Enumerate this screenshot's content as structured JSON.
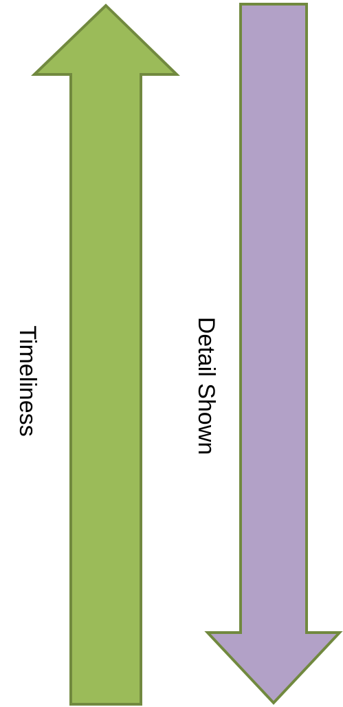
{
  "diagram": {
    "arrows": [
      {
        "id": "timeliness-arrow",
        "direction": "up",
        "label": "Timeliness",
        "fill_color": "#9BBB59",
        "stroke_color": "#71893F"
      },
      {
        "id": "detail-arrow",
        "direction": "down",
        "label": "Detail Shown",
        "fill_color": "#B2A1C7",
        "stroke_color": "#71893F"
      }
    ]
  }
}
